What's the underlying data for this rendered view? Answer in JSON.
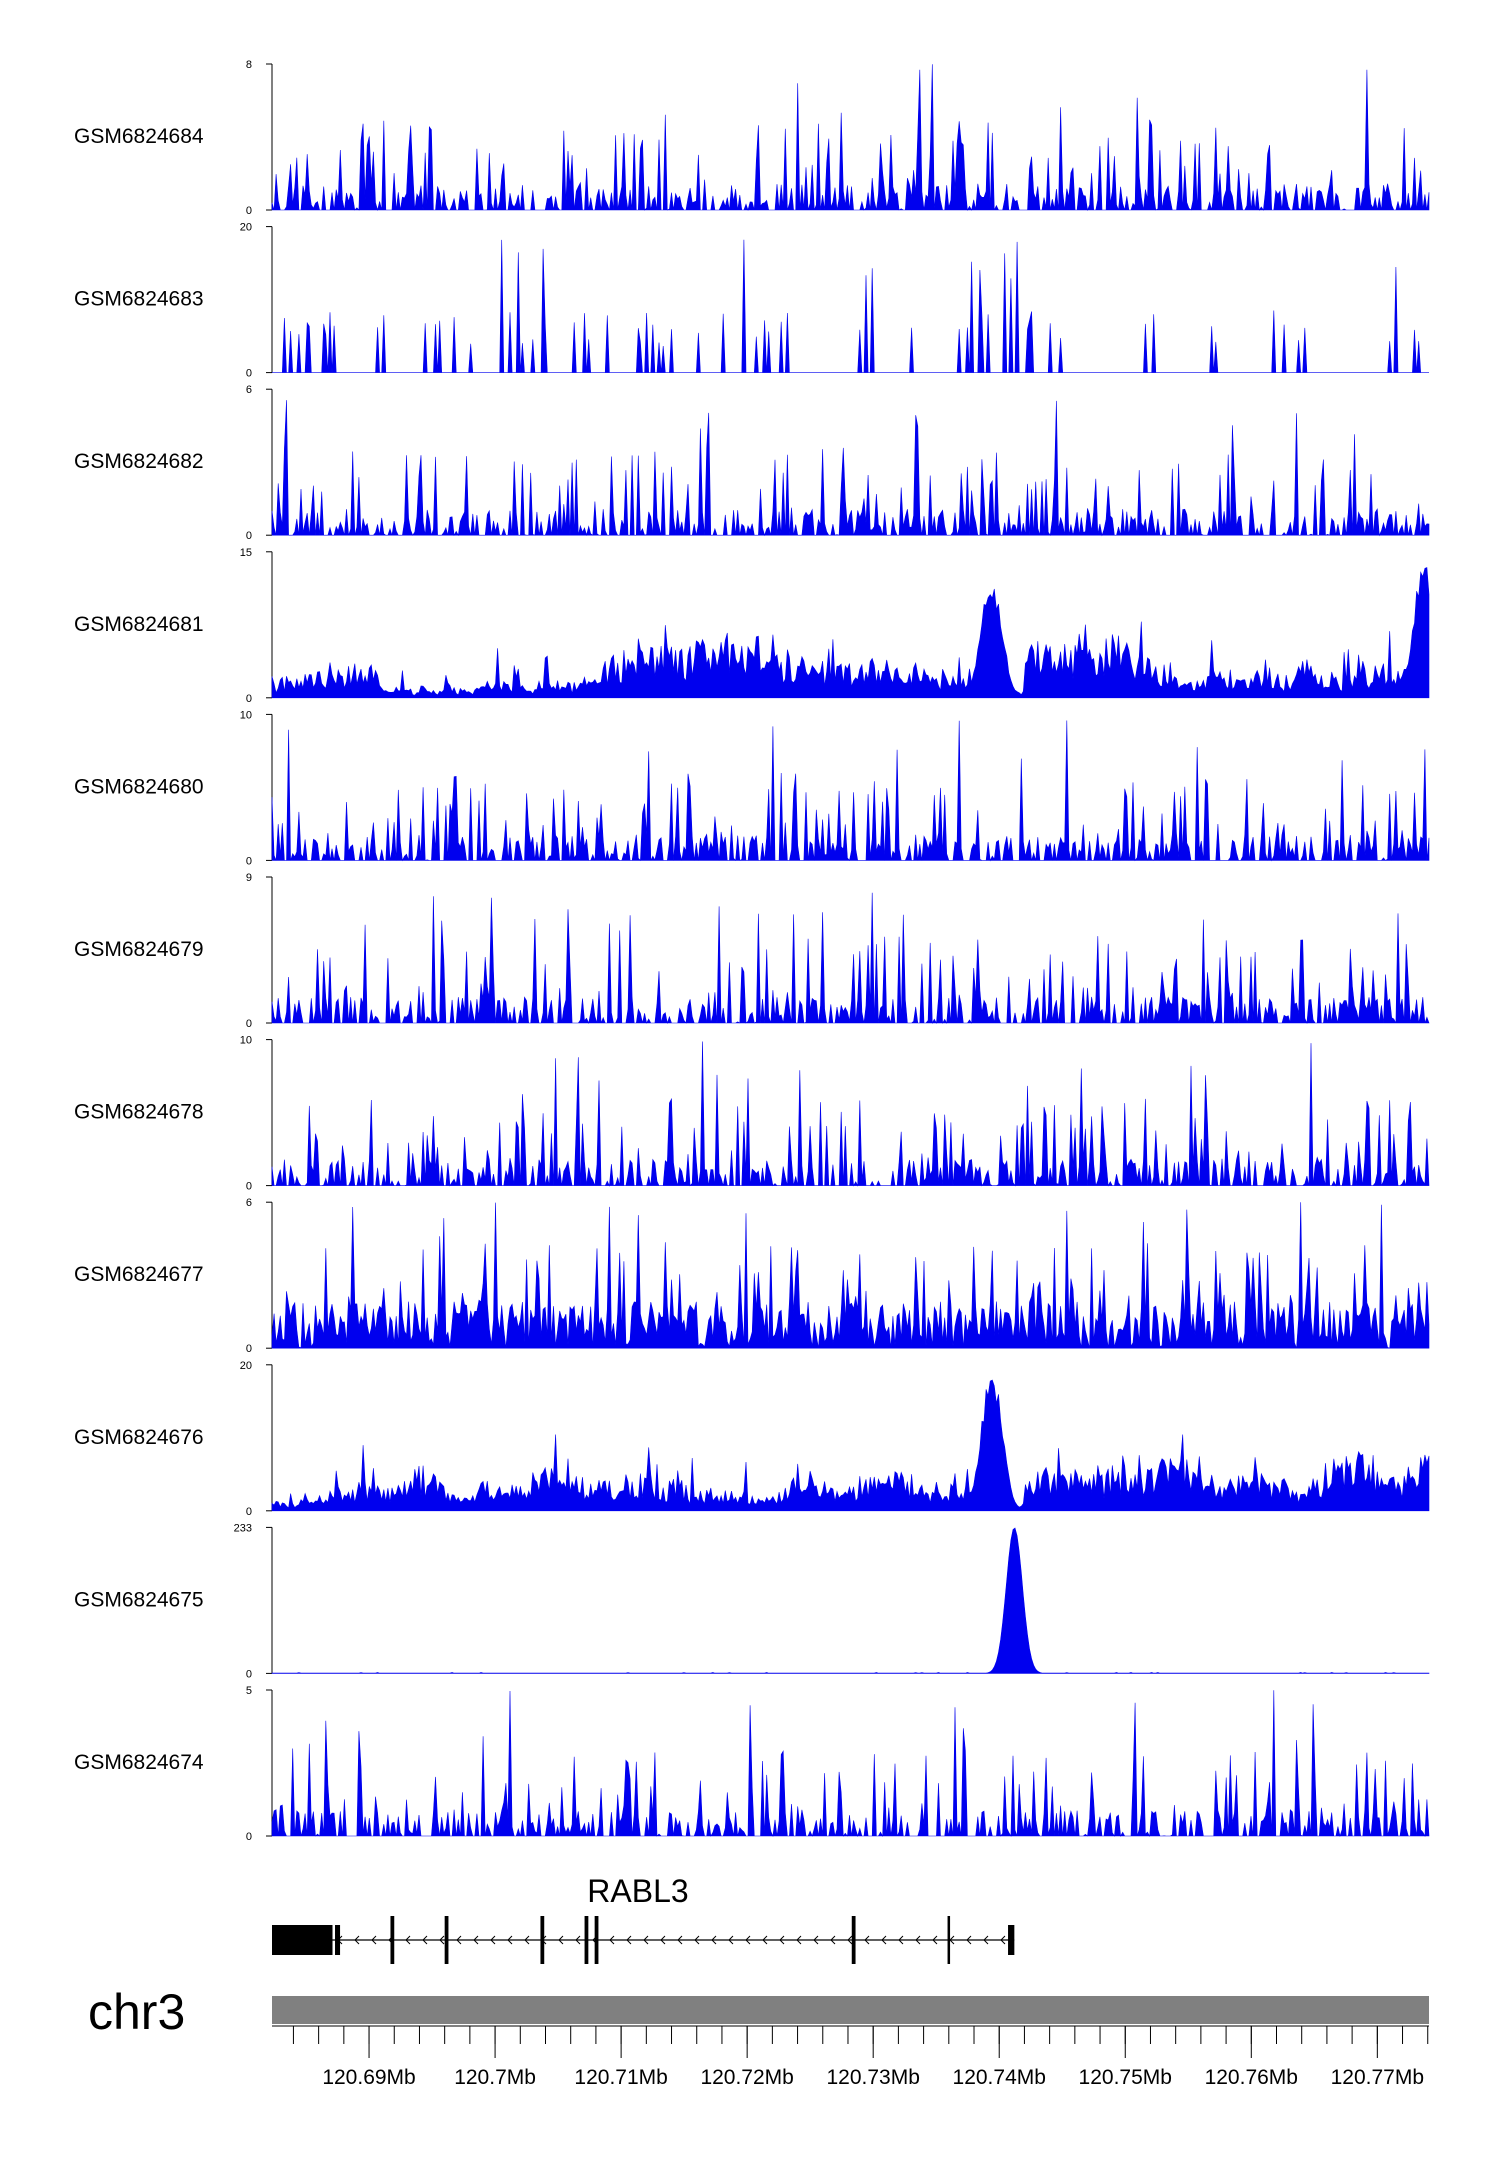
{
  "colors": {
    "signal": "#0000ee",
    "gene": "#000000",
    "ideogram": "#808080"
  },
  "chart_data": {
    "type": "area",
    "chromosome": "chr3",
    "region_start_mb": 120.6823,
    "region_end_mb": 120.7741,
    "tracks": [
      {
        "name": "GSM6824684",
        "ymax": 8,
        "pattern": "spiky",
        "seed": 11,
        "peaks": []
      },
      {
        "name": "GSM6824683",
        "ymax": 20,
        "pattern": "sparse",
        "seed": 23,
        "peaks": []
      },
      {
        "name": "GSM6824682",
        "ymax": 6,
        "pattern": "spiky",
        "seed": 37,
        "peaks": []
      },
      {
        "name": "GSM6824681",
        "ymax": 15,
        "pattern": "broad",
        "seed": 41,
        "peaks": [
          [
            120.7394,
            0.85
          ],
          [
            120.7737,
            0.95
          ]
        ]
      },
      {
        "name": "GSM6824680",
        "ymax": 10,
        "pattern": "spiky",
        "seed": 53,
        "peaks": []
      },
      {
        "name": "GSM6824679",
        "ymax": 9,
        "pattern": "spiky",
        "seed": 61,
        "peaks": []
      },
      {
        "name": "GSM6824678",
        "ymax": 10,
        "pattern": "spiky",
        "seed": 71,
        "peaks": []
      },
      {
        "name": "GSM6824677",
        "ymax": 6,
        "pattern": "dense",
        "seed": 83,
        "peaks": []
      },
      {
        "name": "GSM6824676",
        "ymax": 20,
        "pattern": "broad",
        "seed": 97,
        "peaks": [
          [
            120.7394,
            1.0
          ]
        ]
      },
      {
        "name": "GSM6824675",
        "ymax": 233,
        "pattern": "singlepeak",
        "seed": 101,
        "peaks": [
          [
            120.7412,
            1.0
          ]
        ]
      },
      {
        "name": "GSM6824674",
        "ymax": 5,
        "pattern": "spiky",
        "seed": 113,
        "peaks": []
      }
    ],
    "gene": {
      "name": "RABL3",
      "strand": "-",
      "start_mb": 120.6823,
      "end_mb": 120.7412,
      "exons_mb": [
        [
          120.6823,
          120.6871
        ],
        [
          120.6873,
          120.6877
        ],
        [
          120.6917,
          120.692
        ],
        [
          120.696,
          120.6963
        ],
        [
          120.7036,
          120.7039
        ],
        [
          120.7071,
          120.7074
        ],
        [
          120.7079,
          120.7082
        ],
        [
          120.7283,
          120.7286
        ],
        [
          120.7359,
          120.7361
        ],
        [
          120.7407,
          120.7412
        ]
      ]
    },
    "axis_ticks_mb": [
      120.69,
      120.7,
      120.71,
      120.72,
      120.73,
      120.74,
      120.75,
      120.76,
      120.77
    ],
    "axis_tick_labels": [
      "120.69Mb",
      "120.7Mb",
      "120.71Mb",
      "120.72Mb",
      "120.73Mb",
      "120.74Mb",
      "120.75Mb",
      "120.76Mb",
      "120.77Mb"
    ],
    "minor_tick_step_mb": 0.002
  }
}
